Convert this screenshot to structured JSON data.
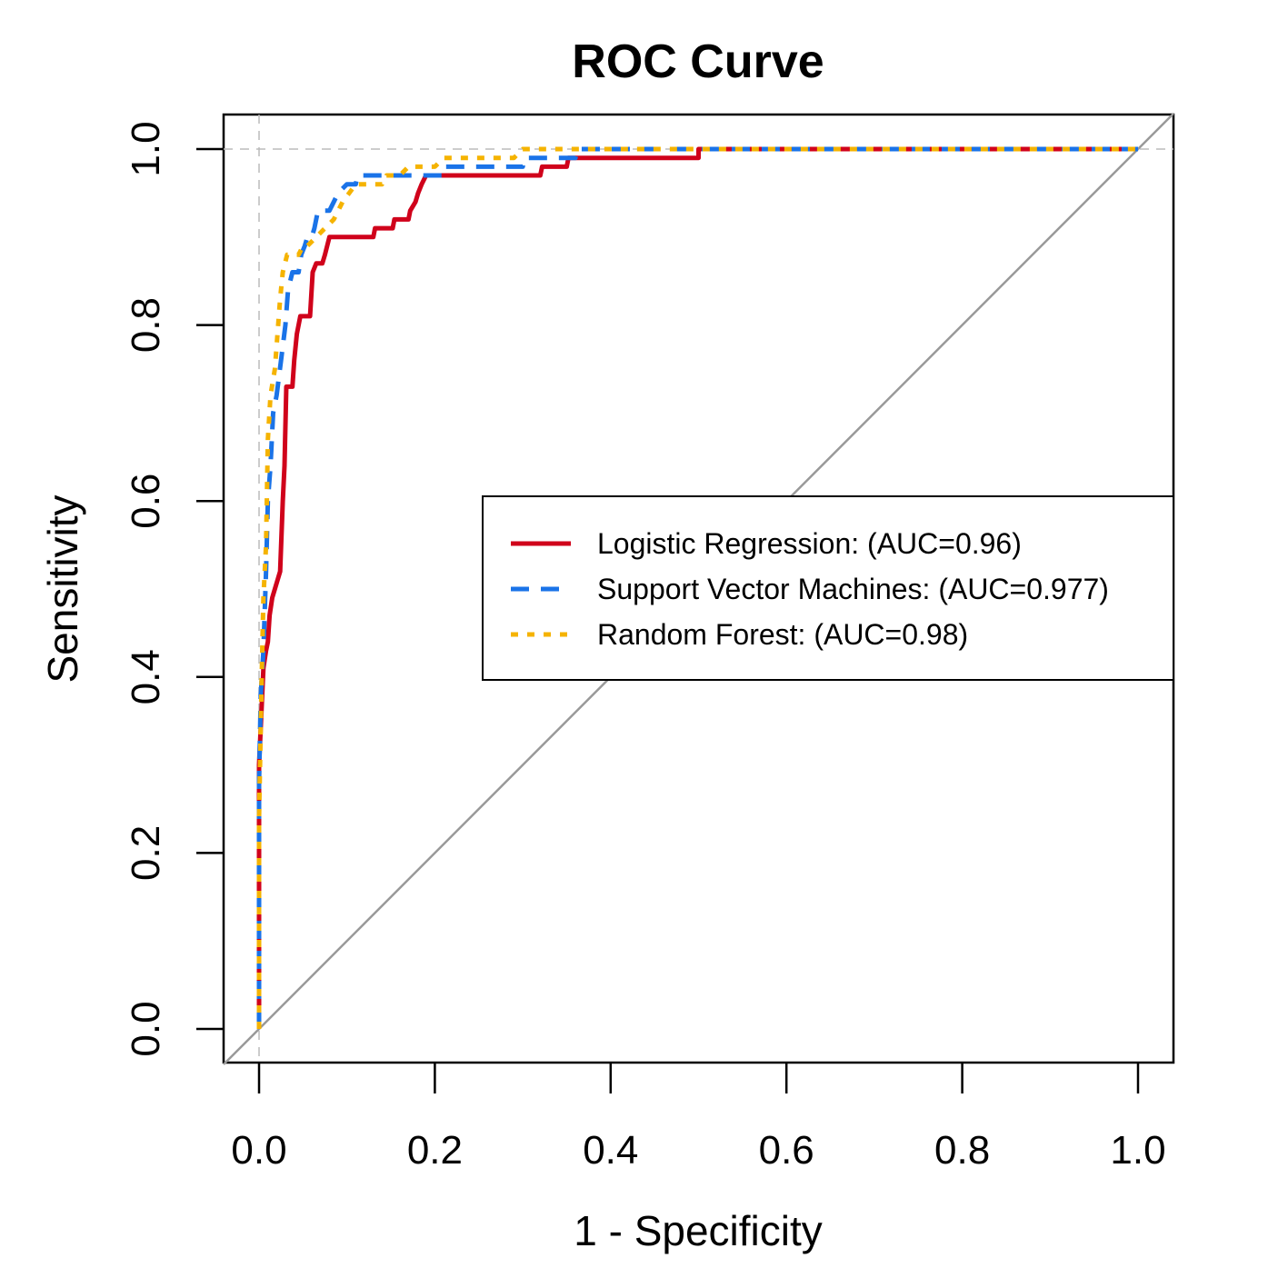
{
  "chart_data": {
    "type": "line",
    "title": "ROC Curve",
    "xlabel": "1 - Specificity",
    "ylabel": "Sensitivity",
    "xlim": [
      0,
      1
    ],
    "ylim": [
      0,
      1
    ],
    "x_ticks": [
      "0.0",
      "0.2",
      "0.4",
      "0.6",
      "0.8",
      "1.0"
    ],
    "y_ticks": [
      "0.0",
      "0.2",
      "0.4",
      "0.6",
      "0.8",
      "1.0"
    ],
    "reference_line": {
      "from": [
        0,
        0
      ],
      "to": [
        1,
        1
      ],
      "color": "#999999"
    },
    "reference_gridlines": {
      "x": 0,
      "y": 1,
      "style": "dashed",
      "color": "#bbbbbb"
    },
    "legend_position": "right-center",
    "series": [
      {
        "name": "Logistic Regression: (AUC=0.96)",
        "color": "#d0021b",
        "dash": "solid",
        "points": [
          [
            0,
            0
          ],
          [
            0,
            0.3
          ],
          [
            0.005,
            0.41
          ],
          [
            0.008,
            0.43
          ],
          [
            0.01,
            0.44
          ],
          [
            0.012,
            0.47
          ],
          [
            0.015,
            0.49
          ],
          [
            0.018,
            0.5
          ],
          [
            0.021,
            0.51
          ],
          [
            0.024,
            0.52
          ],
          [
            0.027,
            0.6
          ],
          [
            0.029,
            0.64
          ],
          [
            0.031,
            0.73
          ],
          [
            0.038,
            0.73
          ],
          [
            0.04,
            0.76
          ],
          [
            0.043,
            0.79
          ],
          [
            0.047,
            0.81
          ],
          [
            0.05,
            0.81
          ],
          [
            0.058,
            0.81
          ],
          [
            0.061,
            0.86
          ],
          [
            0.065,
            0.87
          ],
          [
            0.072,
            0.87
          ],
          [
            0.075,
            0.88
          ],
          [
            0.08,
            0.9
          ],
          [
            0.13,
            0.9
          ],
          [
            0.132,
            0.91
          ],
          [
            0.152,
            0.91
          ],
          [
            0.154,
            0.92
          ],
          [
            0.17,
            0.92
          ],
          [
            0.172,
            0.93
          ],
          [
            0.178,
            0.94
          ],
          [
            0.181,
            0.95
          ],
          [
            0.185,
            0.96
          ],
          [
            0.19,
            0.97
          ],
          [
            0.32,
            0.97
          ],
          [
            0.322,
            0.98
          ],
          [
            0.35,
            0.98
          ],
          [
            0.352,
            0.99
          ],
          [
            0.5,
            0.99
          ],
          [
            0.5,
            1.0
          ],
          [
            1.0,
            1.0
          ]
        ]
      },
      {
        "name": "Support Vector Machines: (AUC=0.977)",
        "color": "#1a73e8",
        "dash": "dashed",
        "points": [
          [
            0,
            0
          ],
          [
            0,
            0.28
          ],
          [
            0.002,
            0.38
          ],
          [
            0.005,
            0.43
          ],
          [
            0.008,
            0.52
          ],
          [
            0.01,
            0.6
          ],
          [
            0.013,
            0.64
          ],
          [
            0.016,
            0.7
          ],
          [
            0.02,
            0.72
          ],
          [
            0.025,
            0.76
          ],
          [
            0.03,
            0.8
          ],
          [
            0.033,
            0.84
          ],
          [
            0.038,
            0.86
          ],
          [
            0.045,
            0.86
          ],
          [
            0.048,
            0.88
          ],
          [
            0.052,
            0.89
          ],
          [
            0.055,
            0.9
          ],
          [
            0.06,
            0.9
          ],
          [
            0.063,
            0.91
          ],
          [
            0.067,
            0.93
          ],
          [
            0.08,
            0.93
          ],
          [
            0.085,
            0.94
          ],
          [
            0.09,
            0.95
          ],
          [
            0.1,
            0.96
          ],
          [
            0.11,
            0.96
          ],
          [
            0.112,
            0.97
          ],
          [
            0.21,
            0.97
          ],
          [
            0.212,
            0.98
          ],
          [
            0.3,
            0.98
          ],
          [
            0.302,
            0.99
          ],
          [
            0.36,
            0.99
          ],
          [
            0.362,
            1.0
          ],
          [
            1.0,
            1.0
          ]
        ]
      },
      {
        "name": "Random Forest: (AUC=0.98)",
        "color": "#f5b300",
        "dash": "dotted",
        "points": [
          [
            0,
            0
          ],
          [
            0,
            0.24
          ],
          [
            0.003,
            0.4
          ],
          [
            0.005,
            0.49
          ],
          [
            0.008,
            0.55
          ],
          [
            0.01,
            0.67
          ],
          [
            0.013,
            0.72
          ],
          [
            0.018,
            0.75
          ],
          [
            0.021,
            0.79
          ],
          [
            0.024,
            0.83
          ],
          [
            0.027,
            0.86
          ],
          [
            0.032,
            0.88
          ],
          [
            0.045,
            0.88
          ],
          [
            0.05,
            0.89
          ],
          [
            0.055,
            0.89
          ],
          [
            0.065,
            0.9
          ],
          [
            0.075,
            0.91
          ],
          [
            0.085,
            0.92
          ],
          [
            0.095,
            0.94
          ],
          [
            0.11,
            0.96
          ],
          [
            0.14,
            0.96
          ],
          [
            0.145,
            0.97
          ],
          [
            0.16,
            0.97
          ],
          [
            0.17,
            0.98
          ],
          [
            0.2,
            0.98
          ],
          [
            0.21,
            0.99
          ],
          [
            0.29,
            0.99
          ],
          [
            0.3,
            1.0
          ],
          [
            1.0,
            1.0
          ]
        ]
      }
    ]
  }
}
